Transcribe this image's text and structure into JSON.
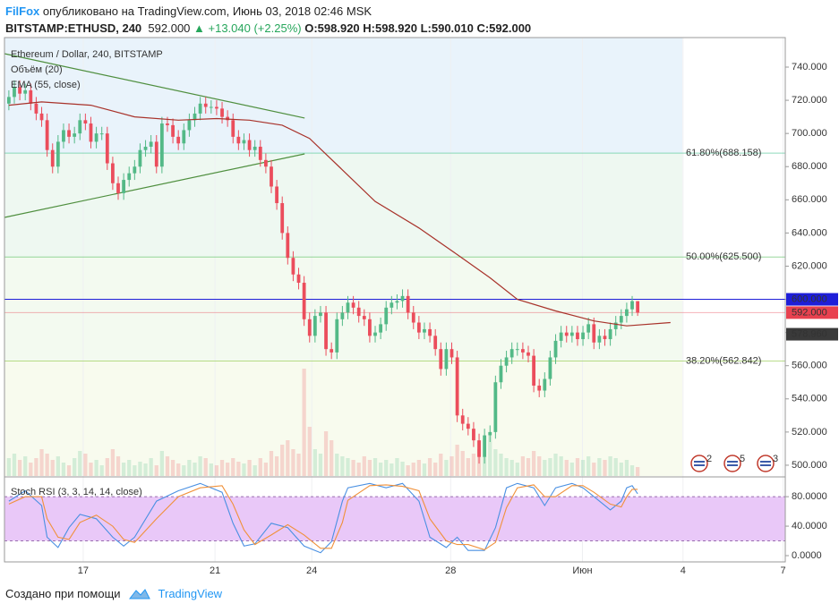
{
  "header": {
    "author": "FilFox",
    "published": "опубликовано на TradingView.com, Июнь 03, 2018 02:46 MSK",
    "symbol": "BITSTAMP:ETHUSD, 240",
    "last": "592.000",
    "change": "▲ +13.040 (+2.25%)",
    "ohlc": "O:598.920 H:598.920 L:590.010 C:592.000"
  },
  "chart_data": [
    {
      "type": "candlestick",
      "title": "Ethereum / Dollar, 240, BITSTAMP",
      "xlim": [
        -0.8,
        142
      ],
      "xticks": [
        {
          "value": 13.6,
          "label": "17"
        },
        {
          "value": 37.7,
          "label": "21"
        },
        {
          "value": 55.4,
          "label": "24"
        },
        {
          "value": 80.8,
          "label": "28"
        },
        {
          "value": 104.9,
          "label": "Июн"
        },
        {
          "value": 123.3,
          "label": "4"
        },
        {
          "value": 141.6,
          "label": "7"
        }
      ],
      "ylim": [
        493.5,
        757.8
      ],
      "yticks": [
        {
          "value": 500,
          "label": "500.000"
        },
        {
          "value": 520,
          "label": "520.000"
        },
        {
          "value": 540,
          "label": "540.000"
        },
        {
          "value": 560,
          "label": "560.000"
        },
        {
          "value": 580,
          "label": "580.000"
        },
        {
          "value": 600,
          "label": "600.000"
        },
        {
          "value": 620,
          "label": "620.000"
        },
        {
          "value": 640,
          "label": "640.000"
        },
        {
          "value": 660,
          "label": "660.000"
        },
        {
          "value": 680,
          "label": "680.000"
        },
        {
          "value": 700,
          "label": "700.000"
        },
        {
          "value": 720,
          "label": "720.000"
        },
        {
          "value": 740,
          "label": "740.000"
        }
      ],
      "open": [
        718,
        722,
        728,
        724,
        726,
        718,
        712,
        708,
        690,
        680,
        695,
        702,
        698,
        700,
        708,
        706,
        695,
        700,
        700,
        682,
        670,
        664,
        672,
        676,
        680,
        690,
        692,
        695,
        680,
        706,
        705,
        698,
        694,
        702,
        708,
        712,
        718,
        716,
        716,
        715,
        710,
        708,
        698,
        694,
        696,
        690,
        692,
        684,
        680,
        668,
        658,
        640,
        625,
        615,
        610,
        588,
        578,
        590,
        592,
        570,
        568,
        588,
        592,
        598,
        595,
        590,
        588,
        578,
        580,
        585,
        595,
        598,
        599,
        602,
        592,
        586,
        580,
        582,
        578,
        570,
        558,
        570,
        565,
        530,
        525,
        522,
        515,
        505,
        518,
        520,
        550,
        560,
        565,
        570,
        570,
        568,
        566,
        548,
        545,
        552,
        565,
        575,
        580,
        578,
        580,
        576,
        580,
        585,
        574,
        578,
        576,
        582,
        586,
        590,
        594,
        598.92
      ],
      "high": [
        726,
        732,
        732,
        730,
        730,
        722,
        716,
        712,
        694,
        699,
        706,
        706,
        704,
        712,
        712,
        710,
        704,
        704,
        704,
        686,
        674,
        676,
        680,
        684,
        694,
        696,
        699,
        699,
        710,
        710,
        709,
        702,
        706,
        712,
        716,
        722,
        722,
        720,
        720,
        719,
        714,
        712,
        702,
        700,
        700,
        696,
        696,
        688,
        684,
        672,
        662,
        644,
        629,
        619,
        614,
        592,
        594,
        596,
        596,
        574,
        592,
        596,
        602,
        602,
        599,
        594,
        592,
        584,
        589,
        599,
        602,
        603,
        606,
        606,
        596,
        590,
        586,
        586,
        582,
        574,
        574,
        574,
        569,
        534,
        529,
        526,
        519,
        522,
        524,
        554,
        564,
        569,
        574,
        574,
        574,
        572,
        570,
        552,
        556,
        569,
        579,
        584,
        584,
        584,
        584,
        584,
        589,
        589,
        582,
        582,
        586,
        590,
        594,
        598,
        602,
        598.92
      ],
      "low": [
        714,
        718,
        720,
        720,
        714,
        708,
        704,
        686,
        676,
        676,
        691,
        694,
        694,
        696,
        702,
        691,
        691,
        696,
        678,
        666,
        660,
        660,
        668,
        672,
        676,
        686,
        688,
        676,
        676,
        701,
        694,
        690,
        690,
        698,
        704,
        708,
        712,
        712,
        711,
        706,
        704,
        694,
        690,
        690,
        686,
        686,
        680,
        676,
        664,
        654,
        636,
        621,
        611,
        606,
        584,
        574,
        574,
        586,
        566,
        564,
        564,
        584,
        588,
        591,
        586,
        584,
        574,
        574,
        576,
        581,
        591,
        594,
        595,
        588,
        582,
        576,
        576,
        574,
        566,
        554,
        554,
        561,
        526,
        521,
        518,
        511,
        501,
        501,
        514,
        516,
        546,
        556,
        561,
        566,
        564,
        562,
        544,
        541,
        541,
        548,
        561,
        571,
        574,
        574,
        572,
        572,
        576,
        570,
        570,
        572,
        572,
        578,
        582,
        586,
        590,
        590.01
      ],
      "close": [
        722,
        728,
        724,
        726,
        718,
        712,
        708,
        690,
        680,
        695,
        702,
        698,
        700,
        708,
        706,
        695,
        700,
        700,
        682,
        670,
        664,
        672,
        676,
        680,
        690,
        692,
        695,
        680,
        706,
        705,
        698,
        694,
        702,
        708,
        712,
        718,
        716,
        716,
        715,
        710,
        708,
        698,
        694,
        696,
        690,
        692,
        684,
        680,
        668,
        658,
        640,
        625,
        615,
        610,
        588,
        578,
        590,
        592,
        570,
        568,
        588,
        592,
        598,
        595,
        590,
        588,
        578,
        580,
        585,
        595,
        598,
        599,
        602,
        592,
        586,
        580,
        582,
        578,
        570,
        558,
        570,
        565,
        530,
        525,
        522,
        515,
        505,
        518,
        520,
        550,
        560,
        565,
        570,
        570,
        568,
        566,
        548,
        545,
        552,
        565,
        575,
        580,
        578,
        580,
        576,
        580,
        585,
        574,
        578,
        576,
        582,
        586,
        590,
        594,
        598.92,
        592
      ],
      "colors": {
        "up": "#53b987",
        "down": "#eb4d5c"
      },
      "volume": {
        "name": "Объём (20)",
        "values": [
          20,
          25,
          18,
          22,
          15,
          20,
          30,
          25,
          18,
          22,
          15,
          12,
          20,
          28,
          25,
          15,
          18,
          12,
          20,
          30,
          22,
          15,
          18,
          12,
          16,
          14,
          20,
          12,
          28,
          22,
          18,
          14,
          12,
          18,
          15,
          22,
          20,
          14,
          12,
          18,
          15,
          20,
          16,
          14,
          18,
          12,
          20,
          15,
          28,
          22,
          35,
          40,
          30,
          25,
          120,
          55,
          30,
          25,
          50,
          40,
          25,
          22,
          20,
          18,
          15,
          22,
          18,
          20,
          15,
          18,
          14,
          20,
          16,
          12,
          15,
          18,
          14,
          20,
          15,
          25,
          18,
          22,
          35,
          28,
          20,
          25,
          30,
          22,
          45,
          30,
          25,
          20,
          18,
          15,
          22,
          20,
          28,
          22,
          18,
          20,
          25,
          22,
          18,
          15,
          20,
          18,
          22,
          15,
          20,
          18,
          22,
          20,
          15,
          18,
          12,
          10
        ]
      },
      "series": [
        {
          "name": "EMA (55, close)",
          "color": "#a8322a",
          "x": [
            0,
            6,
            15,
            23,
            31,
            38,
            44,
            50,
            55,
            61,
            67,
            75,
            82,
            88,
            93,
            100,
            107,
            113,
            121
          ],
          "values": [
            717,
            719,
            717,
            710,
            708,
            709,
            708,
            705,
            697,
            678,
            659,
            643,
            627,
            613,
            600,
            593,
            587,
            584,
            586
          ]
        }
      ],
      "trendlines": [
        {
          "color": "#4f8f3f",
          "x": [
            -0.8,
            54.1
          ],
          "values": [
            748.1,
            709.3
          ]
        },
        {
          "color": "#4f8f3f",
          "x": [
            -0.8,
            54.1
          ],
          "values": [
            649.4,
            687.7
          ]
        }
      ],
      "levels": [
        {
          "value": 688.158,
          "label": "61.80%(688.158)",
          "color": "#45bf8f"
        },
        {
          "value": 625.5,
          "label": "50.00%(625.500)",
          "color": "#55c05a"
        },
        {
          "value": 562.842,
          "label": "38.20%(562.842)",
          "color": "#8cc63f"
        }
      ],
      "price_labels": [
        {
          "value": 600,
          "label": "600.000",
          "color": "#1e1ed8"
        },
        {
          "value": 592,
          "label": "592.000",
          "color": "#e8414f"
        },
        {
          "value": 578.96,
          "label": "578.960",
          "color": "#3a3a3a"
        }
      ],
      "events": [
        "2",
        "5",
        "3"
      ]
    },
    {
      "type": "line",
      "title": "Stoch RSI (3, 3, 14, 14, close)",
      "ylim": [
        -8.5,
        102
      ],
      "yticks": [
        {
          "value": 0,
          "label": "0.0000"
        },
        {
          "value": 40,
          "label": "40.0000"
        },
        {
          "value": 80,
          "label": "80.0000"
        }
      ],
      "band": [
        20,
        80
      ],
      "band_color": "#e9c8f8",
      "x": [
        0,
        3,
        6,
        7,
        9,
        11,
        13,
        16,
        19,
        21,
        23,
        27,
        31,
        35,
        39,
        41,
        43,
        45,
        48,
        51,
        54,
        57,
        59,
        61,
        62,
        66,
        69,
        72,
        75,
        77,
        80,
        82,
        84,
        87,
        89,
        91,
        93,
        96,
        98,
        100,
        103,
        105,
        107,
        110,
        112,
        113,
        114,
        115
      ],
      "series": [
        {
          "color": "#4a90e2",
          "values": [
            74,
            88,
            68,
            25,
            11,
            38,
            56,
            50,
            25,
            13,
            25,
            74,
            88,
            98,
            86,
            44,
            13,
            16,
            44,
            38,
            13,
            4,
            19,
            74,
            92,
            98,
            92,
            98,
            74,
            25,
            11,
            25,
            7,
            7,
            38,
            92,
            98,
            92,
            68,
            92,
            98,
            92,
            80,
            62,
            74,
            92,
            95,
            84
          ]
        },
        {
          "color": "#f0913a",
          "values": [
            70,
            80,
            80,
            50,
            25,
            22,
            45,
            55,
            40,
            22,
            18,
            50,
            80,
            92,
            95,
            70,
            35,
            15,
            28,
            42,
            28,
            10,
            10,
            45,
            75,
            95,
            96,
            94,
            88,
            50,
            20,
            15,
            15,
            8,
            18,
            65,
            92,
            96,
            80,
            80,
            95,
            95,
            86,
            70,
            66,
            80,
            90,
            90
          ]
        }
      ]
    }
  ],
  "footer": {
    "text": "Создано при помощи",
    "brand": "TradingView"
  }
}
